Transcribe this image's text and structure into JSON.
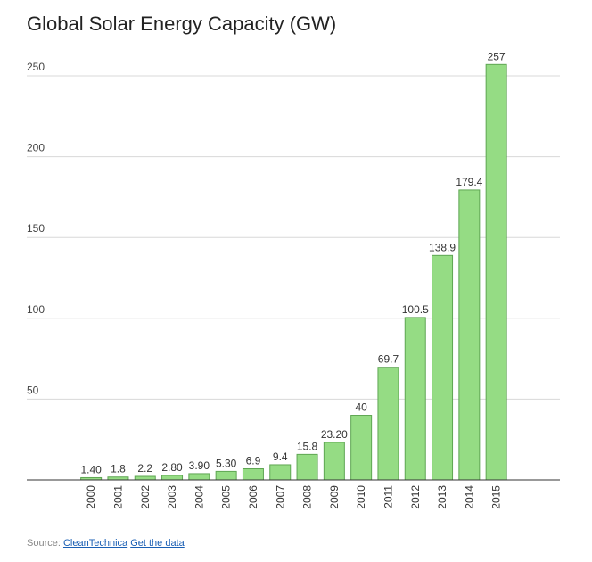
{
  "chart_data": {
    "type": "bar",
    "title": "Global Solar Energy Capacity (GW)",
    "categories": [
      "2000",
      "2001",
      "2002",
      "2003",
      "2004",
      "2005",
      "2006",
      "2007",
      "2008",
      "2009",
      "2010",
      "2011",
      "2012",
      "2013",
      "2014",
      "2015"
    ],
    "values": [
      1.4,
      1.8,
      2.2,
      2.8,
      3.9,
      5.3,
      6.9,
      9.4,
      15.8,
      23.2,
      40,
      69.7,
      100.5,
      138.9,
      179.4,
      257
    ],
    "value_labels": [
      "1.40",
      "1.8",
      "2.2",
      "2.80",
      "3.90",
      "5.30",
      "6.9",
      "9.4",
      "15.8",
      "23.20",
      "40",
      "69.7",
      "100.5",
      "138.9",
      "179.4",
      "257"
    ],
    "xlabel": "",
    "ylabel": "",
    "ylim": [
      0,
      250
    ],
    "yticks": [
      "50",
      "100",
      "150",
      "200",
      "250"
    ],
    "grid": true,
    "colors": {
      "bar_fill": "#95dc84",
      "bar_stroke": "#5fa653",
      "grid": "#d8d8d8",
      "axis": "#333333"
    }
  },
  "footer": {
    "source_prefix": "Source:",
    "source_link": "CleanTechnica",
    "data_link": "Get the data"
  }
}
